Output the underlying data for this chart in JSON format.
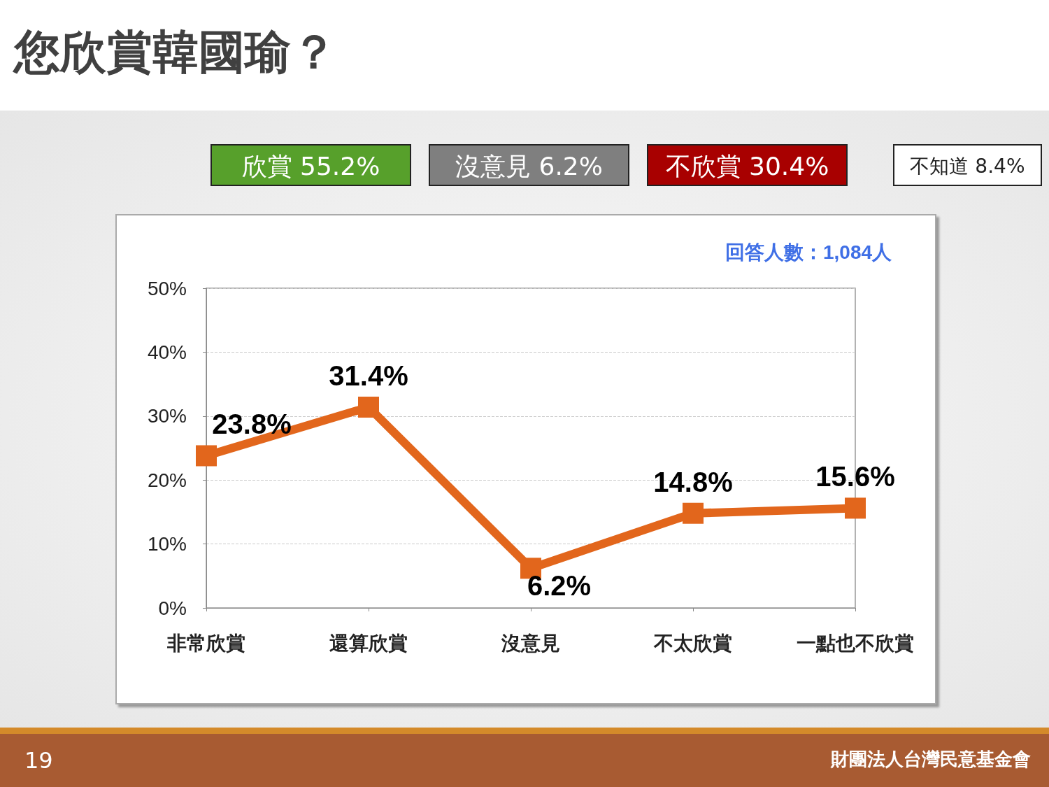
{
  "chart_data": {
    "type": "line",
    "title": "您欣賞韓國瑜？",
    "categories": [
      "非常欣賞",
      "還算欣賞",
      "沒意見",
      "不太欣賞",
      "一點也不欣賞"
    ],
    "series": [
      {
        "color": "#e2661c",
        "values": [
          23.8,
          31.4,
          6.2,
          14.8,
          15.6
        ],
        "value_labels": [
          "23.8%",
          "31.4%",
          "6.2%",
          "14.8%",
          "15.6%"
        ]
      }
    ],
    "ylim": [
      0,
      50
    ],
    "yticks": [
      {
        "value": 0,
        "label": "0%"
      },
      {
        "value": 10,
        "label": "10%"
      },
      {
        "value": 20,
        "label": "20%"
      },
      {
        "value": 30,
        "label": "30%"
      },
      {
        "value": 40,
        "label": "40%"
      },
      {
        "value": 50,
        "label": "50%"
      }
    ],
    "grid": "y",
    "marker": "square",
    "line_style": "solid",
    "annotations": [
      "欣賞 55.2%",
      "沒意見 6.2%",
      "不欣賞 30.4%",
      "不知道 8.4%",
      "回答人數：1,084人",
      "19",
      "財團法人台灣民意基金會"
    ]
  }
}
